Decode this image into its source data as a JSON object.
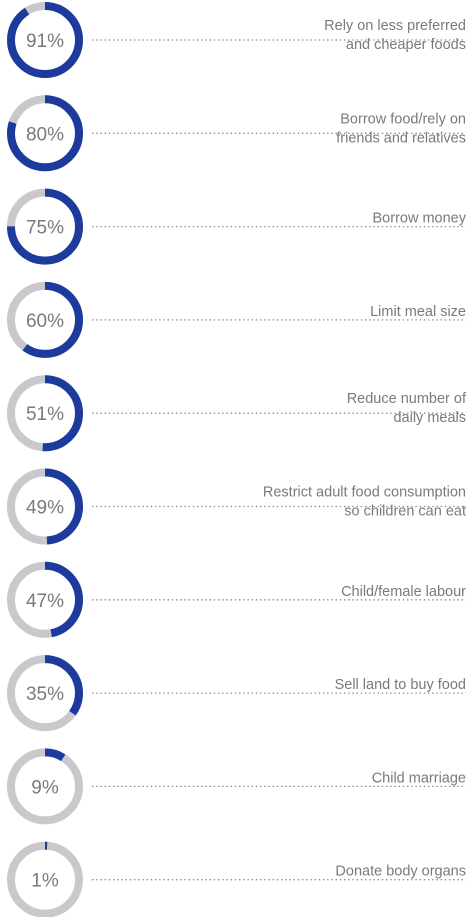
{
  "chart_data": {
    "type": "donut-list",
    "categories": [
      "Rely on less preferred\nand cheaper foods",
      "Borrow food/rely on\nfriends and relatives",
      "Borrow money",
      "Limit meal size",
      "Reduce number of\ndaily meals",
      "Restrict adult food consumption\nso children can eat",
      "Child/female labour",
      "Sell land to buy food",
      "Child marriage",
      "Donate body organs"
    ],
    "values": [
      91,
      80,
      75,
      60,
      51,
      49,
      47,
      35,
      9,
      1
    ],
    "value_labels": [
      "91%",
      "80%",
      "75%",
      "60%",
      "51%",
      "49%",
      "47%",
      "35%",
      "9%",
      "1%"
    ],
    "ylim": [
      0,
      100
    ],
    "color": "#1c3b9c",
    "track_color": "#c9c9cd"
  }
}
